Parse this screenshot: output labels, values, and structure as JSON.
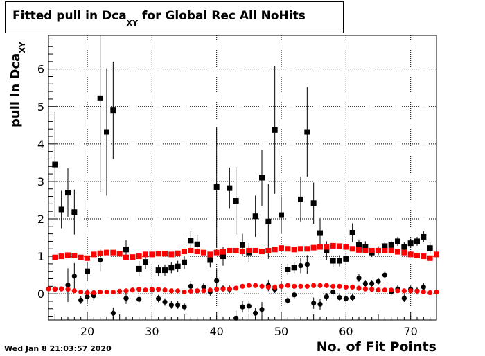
{
  "title": {
    "main": "Fitted pull in Dca",
    "sub": "XY",
    "rest": " for Global Rec All NoHits"
  },
  "ylabel": {
    "main": "pull in Dca",
    "sub": "XY"
  },
  "xlabel": "No. of Fit Points",
  "datestamp": "Wed Jan  8 21:03:57 2020",
  "chart_data": {
    "type": "scatter",
    "xlim": [
      14,
      74
    ],
    "ylim": [
      -0.7,
      6.9
    ],
    "grid": true,
    "xticks": [
      20,
      30,
      40,
      50,
      60,
      70
    ],
    "yticks": [
      0,
      1,
      2,
      3,
      4,
      5,
      6
    ],
    "xlabel": "No. of Fit Points",
    "ylabel": "pull in DcaXY",
    "colors": {
      "black": "#000000",
      "red": "#ff0000"
    },
    "series": [
      {
        "marker": "square",
        "color": "#000000",
        "points": [
          [
            15,
            3.45,
            1.4
          ],
          [
            16,
            2.25,
            0.5
          ],
          [
            17,
            2.7,
            0.65
          ],
          [
            18,
            2.18,
            0.6
          ],
          [
            20,
            0.6,
            0.25
          ],
          [
            22,
            5.22,
            2.5
          ],
          [
            23,
            4.32,
            1.7
          ],
          [
            24,
            4.9,
            1.3
          ],
          [
            26,
            1.18,
            0.25
          ],
          [
            28,
            0.67,
            0.2
          ],
          [
            29,
            0.85,
            0.2
          ],
          [
            31,
            0.63,
            0.15
          ],
          [
            32,
            0.63,
            0.15
          ],
          [
            33,
            0.7,
            0.15
          ],
          [
            34,
            0.73,
            0.15
          ],
          [
            35,
            0.84,
            0.18
          ],
          [
            36,
            1.42,
            0.25
          ],
          [
            37,
            1.32,
            0.25
          ],
          [
            39,
            0.9,
            0.2
          ],
          [
            40,
            2.85,
            1.6
          ],
          [
            41,
            1.0,
            0.25
          ],
          [
            42,
            2.82,
            0.55
          ],
          [
            43,
            2.48,
            0.9
          ],
          [
            44,
            1.3,
            0.3
          ],
          [
            45,
            1.1,
            0.25
          ],
          [
            46,
            2.07,
            0.55
          ],
          [
            47,
            3.1,
            0.75
          ],
          [
            48,
            1.93,
            1.0
          ],
          [
            49,
            4.37,
            1.7
          ],
          [
            50,
            2.1,
            0.5
          ],
          [
            51,
            0.65,
            0.15
          ],
          [
            52,
            0.7,
            0.15
          ],
          [
            53,
            2.52,
            0.6
          ],
          [
            54,
            4.32,
            1.2
          ],
          [
            55,
            2.42,
            0.55
          ],
          [
            56,
            1.62,
            0.4
          ],
          [
            57,
            1.15,
            0.25
          ],
          [
            58,
            0.88,
            0.15
          ],
          [
            59,
            0.88,
            0.15
          ],
          [
            60,
            0.93,
            0.15
          ],
          [
            61,
            1.63,
            0.25
          ],
          [
            62,
            1.3,
            0.15
          ],
          [
            63,
            1.25,
            0.15
          ],
          [
            64,
            1.1,
            0.12
          ],
          [
            65,
            1.15,
            0.12
          ],
          [
            66,
            1.27,
            0.12
          ],
          [
            67,
            1.3,
            0.12
          ],
          [
            68,
            1.4,
            0.12
          ],
          [
            69,
            1.25,
            0.12
          ],
          [
            70,
            1.35,
            0.12
          ],
          [
            71,
            1.4,
            0.12
          ],
          [
            72,
            1.52,
            0.15
          ],
          [
            73,
            1.22,
            0.15
          ]
        ]
      },
      {
        "marker": "circle",
        "color": "#000000",
        "points": [
          [
            15,
            0.13,
            0.05
          ],
          [
            16,
            0.13,
            0.05
          ],
          [
            17,
            0.23,
            0.45
          ],
          [
            18,
            0.47,
            0.35
          ],
          [
            19,
            -0.17,
            0.1
          ],
          [
            20,
            -0.08,
            0.15
          ],
          [
            21,
            -0.05,
            0.15
          ],
          [
            22,
            0.9,
            0.3
          ],
          [
            24,
            -0.52,
            0.15
          ],
          [
            26,
            -0.12,
            0.15
          ],
          [
            28,
            -0.15,
            0.1
          ],
          [
            30,
            0.1,
            0.15
          ],
          [
            31,
            -0.13,
            0.1
          ],
          [
            32,
            -0.22,
            0.1
          ],
          [
            33,
            -0.3,
            0.1
          ],
          [
            34,
            -0.3,
            0.1
          ],
          [
            35,
            -0.35,
            0.1
          ],
          [
            36,
            0.2,
            0.15
          ],
          [
            37,
            0.08,
            0.1
          ],
          [
            38,
            0.18,
            0.1
          ],
          [
            39,
            0.05,
            0.1
          ],
          [
            40,
            0.35,
            0.3
          ],
          [
            41,
            0.14,
            0.1
          ],
          [
            42,
            0.12,
            0.1
          ],
          [
            43,
            -0.65,
            0.2
          ],
          [
            44,
            -0.35,
            0.15
          ],
          [
            45,
            -0.33,
            0.15
          ],
          [
            46,
            -0.52,
            0.15
          ],
          [
            47,
            -0.42,
            0.2
          ],
          [
            48,
            0.22,
            0.15
          ],
          [
            49,
            0.12,
            0.1
          ],
          [
            50,
            0.2,
            0.15
          ],
          [
            51,
            -0.18,
            0.1
          ],
          [
            52,
            -0.03,
            0.1
          ],
          [
            53,
            0.75,
            0.2
          ],
          [
            54,
            0.78,
            0.25
          ],
          [
            55,
            -0.25,
            0.15
          ],
          [
            56,
            -0.28,
            0.15
          ],
          [
            57,
            -0.08,
            0.1
          ],
          [
            58,
            0.05,
            0.1
          ],
          [
            59,
            -0.1,
            0.1
          ],
          [
            60,
            -0.13,
            0.1
          ],
          [
            61,
            -0.1,
            0.1
          ],
          [
            62,
            0.42,
            0.1
          ],
          [
            63,
            0.27,
            0.1
          ],
          [
            64,
            0.27,
            0.1
          ],
          [
            65,
            0.33,
            0.1
          ],
          [
            66,
            0.5,
            0.1
          ],
          [
            67,
            0.05,
            0.1
          ],
          [
            68,
            0.13,
            0.1
          ],
          [
            69,
            -0.12,
            0.1
          ],
          [
            70,
            0.12,
            0.1
          ],
          [
            71,
            0.08,
            0.1
          ],
          [
            72,
            0.18,
            0.1
          ]
        ]
      },
      {
        "marker": "square",
        "color": "#ff0000",
        "points": [
          [
            15,
            0.97
          ],
          [
            16,
            1.0
          ],
          [
            17,
            1.03
          ],
          [
            18,
            1.02
          ],
          [
            19,
            0.97
          ],
          [
            20,
            0.95
          ],
          [
            21,
            1.05
          ],
          [
            22,
            1.08
          ],
          [
            23,
            1.1
          ],
          [
            24,
            1.1
          ],
          [
            25,
            1.07
          ],
          [
            26,
            0.97
          ],
          [
            27,
            0.98
          ],
          [
            28,
            1.0
          ],
          [
            29,
            1.05
          ],
          [
            30,
            1.05
          ],
          [
            31,
            1.07
          ],
          [
            32,
            1.07
          ],
          [
            33,
            1.05
          ],
          [
            34,
            1.08
          ],
          [
            35,
            1.13
          ],
          [
            36,
            1.15
          ],
          [
            37,
            1.13
          ],
          [
            38,
            1.1
          ],
          [
            39,
            1.05
          ],
          [
            40,
            1.1
          ],
          [
            41,
            1.12
          ],
          [
            42,
            1.15
          ],
          [
            43,
            1.15
          ],
          [
            44,
            1.13
          ],
          [
            45,
            1.15
          ],
          [
            46,
            1.15
          ],
          [
            47,
            1.13
          ],
          [
            48,
            1.15
          ],
          [
            49,
            1.18
          ],
          [
            50,
            1.22
          ],
          [
            51,
            1.2
          ],
          [
            52,
            1.18
          ],
          [
            53,
            1.2
          ],
          [
            54,
            1.2
          ],
          [
            55,
            1.23
          ],
          [
            56,
            1.25
          ],
          [
            57,
            1.25
          ],
          [
            58,
            1.28
          ],
          [
            59,
            1.27
          ],
          [
            60,
            1.25
          ],
          [
            61,
            1.2
          ],
          [
            62,
            1.17
          ],
          [
            63,
            1.15
          ],
          [
            64,
            1.15
          ],
          [
            65,
            1.15
          ],
          [
            66,
            1.15
          ],
          [
            67,
            1.15
          ],
          [
            68,
            1.12
          ],
          [
            69,
            1.1
          ],
          [
            70,
            1.05
          ],
          [
            71,
            1.02
          ],
          [
            72,
            1.0
          ],
          [
            73,
            0.95
          ],
          [
            74,
            1.05
          ]
        ]
      },
      {
        "marker": "circle",
        "color": "#ff0000",
        "points": [
          [
            14,
            0.13
          ],
          [
            15,
            0.12
          ],
          [
            16,
            0.13
          ],
          [
            17,
            0.12
          ],
          [
            18,
            0.08
          ],
          [
            19,
            0.05
          ],
          [
            20,
            0.03
          ],
          [
            21,
            0.03
          ],
          [
            22,
            0.05
          ],
          [
            23,
            0.05
          ],
          [
            24,
            0.05
          ],
          [
            25,
            0.07
          ],
          [
            26,
            0.08
          ],
          [
            27,
            0.1
          ],
          [
            28,
            0.12
          ],
          [
            29,
            0.1
          ],
          [
            30,
            0.12
          ],
          [
            31,
            0.12
          ],
          [
            32,
            0.1
          ],
          [
            33,
            0.08
          ],
          [
            34,
            0.08
          ],
          [
            35,
            0.05
          ],
          [
            36,
            0.07
          ],
          [
            37,
            0.08
          ],
          [
            38,
            0.08
          ],
          [
            39,
            0.1
          ],
          [
            40,
            0.12
          ],
          [
            41,
            0.13
          ],
          [
            42,
            0.13
          ],
          [
            43,
            0.15
          ],
          [
            44,
            0.2
          ],
          [
            45,
            0.22
          ],
          [
            46,
            0.22
          ],
          [
            47,
            0.2
          ],
          [
            48,
            0.18
          ],
          [
            49,
            0.18
          ],
          [
            50,
            0.2
          ],
          [
            51,
            0.22
          ],
          [
            52,
            0.2
          ],
          [
            53,
            0.2
          ],
          [
            54,
            0.2
          ],
          [
            55,
            0.22
          ],
          [
            56,
            0.22
          ],
          [
            57,
            0.22
          ],
          [
            58,
            0.2
          ],
          [
            59,
            0.2
          ],
          [
            60,
            0.18
          ],
          [
            61,
            0.18
          ],
          [
            62,
            0.15
          ],
          [
            63,
            0.13
          ],
          [
            64,
            0.12
          ],
          [
            65,
            0.1
          ],
          [
            66,
            0.1
          ],
          [
            67,
            0.1
          ],
          [
            68,
            0.08
          ],
          [
            69,
            0.08
          ],
          [
            70,
            0.08
          ],
          [
            71,
            0.07
          ],
          [
            72,
            0.05
          ],
          [
            73,
            0.03
          ],
          [
            74,
            0.05
          ]
        ]
      }
    ]
  }
}
